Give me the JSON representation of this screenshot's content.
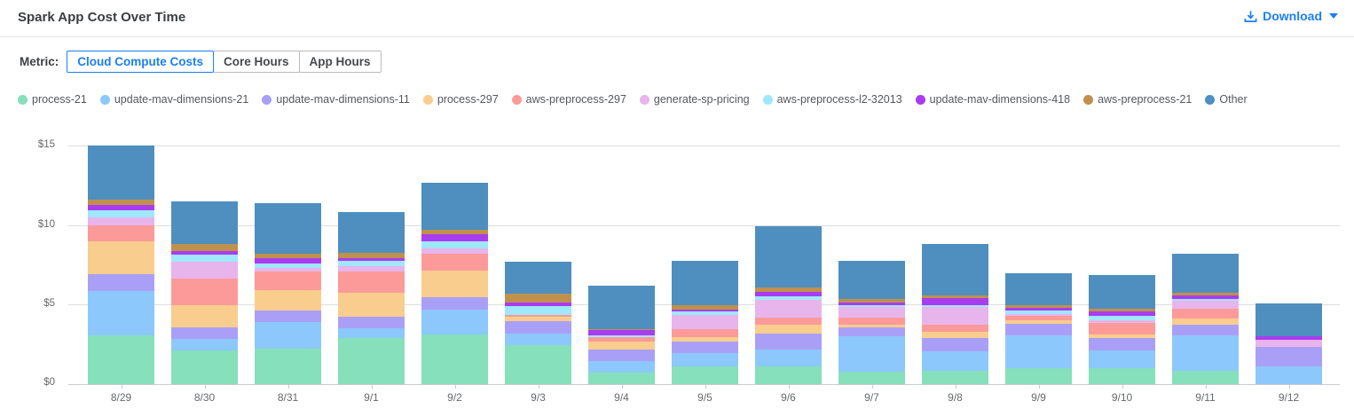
{
  "header": {
    "title": "Spark App Cost Over Time",
    "download_label": "Download"
  },
  "metric": {
    "label": "Metric:",
    "options": [
      {
        "label": "Cloud Compute Costs",
        "selected": true
      },
      {
        "label": "Core Hours",
        "selected": false
      },
      {
        "label": "App Hours",
        "selected": false
      }
    ]
  },
  "colors": {
    "accent_blue": "#1b7ff2",
    "axis_text": "#66696c",
    "legend_text": "#55585b",
    "gridline": "#dcdee0"
  },
  "chart_data": {
    "type": "bar",
    "stacked": true,
    "title": "Spark App Cost Over Time",
    "xlabel": "",
    "ylabel": "",
    "ylim": [
      0,
      15
    ],
    "ytick_labels": [
      "$0",
      "$5",
      "$10",
      "$15"
    ],
    "grid": true,
    "legend_position": "top",
    "x": [
      "8/29",
      "8/30",
      "8/31",
      "9/1",
      "9/2",
      "9/3",
      "9/4",
      "9/5",
      "9/6",
      "9/7",
      "9/8",
      "9/9",
      "9/10",
      "9/11",
      "9/12"
    ],
    "series": [
      {
        "name": "process-21",
        "color": "#85e0bb",
        "values": [
          3.1,
          2.15,
          2.25,
          2.9,
          3.15,
          2.45,
          0.75,
          1.1,
          1.1,
          0.8,
          0.85,
          1.0,
          1.0,
          0.85,
          0.0
        ]
      },
      {
        "name": "update-mav-dimensions-21",
        "color": "#8cc8fc",
        "values": [
          2.8,
          0.7,
          1.7,
          0.65,
          1.55,
          0.75,
          0.7,
          0.85,
          1.1,
          2.25,
          1.25,
          2.1,
          1.15,
          2.25,
          1.1
        ]
      },
      {
        "name": "update-mav-dimensions-11",
        "color": "#aa9ff7",
        "values": [
          1.05,
          0.75,
          0.7,
          0.7,
          0.8,
          0.8,
          0.75,
          0.75,
          1.0,
          0.55,
          0.8,
          0.7,
          0.75,
          0.65,
          1.25
        ]
      },
      {
        "name": "process-297",
        "color": "#f8cd8d",
        "values": [
          2.05,
          1.4,
          1.3,
          1.55,
          1.65,
          0.25,
          0.5,
          0.25,
          0.55,
          0.15,
          0.4,
          0.25,
          0.25,
          0.4,
          0.0
        ]
      },
      {
        "name": "aws-preprocess-297",
        "color": "#fc9a99",
        "values": [
          1.05,
          1.65,
          1.15,
          1.3,
          1.1,
          0.15,
          0.25,
          0.5,
          0.45,
          0.45,
          0.45,
          0.25,
          0.7,
          0.6,
          0.0
        ]
      },
      {
        "name": "generate-sp-pricing",
        "color": "#e8b4ec",
        "values": [
          0.5,
          1.1,
          0.25,
          0.35,
          0.3,
          0.0,
          0.0,
          0.95,
          1.15,
          0.65,
          1.1,
          0.15,
          0.2,
          0.5,
          0.45
        ]
      },
      {
        "name": "aws-preprocess-l2-32013",
        "color": "#9fe7fa",
        "values": [
          0.45,
          0.45,
          0.3,
          0.35,
          0.45,
          0.55,
          0.15,
          0.2,
          0.2,
          0.15,
          0.15,
          0.2,
          0.25,
          0.15,
          0.0
        ]
      },
      {
        "name": "update-mav-dimensions-418",
        "color": "#a93cf0",
        "values": [
          0.3,
          0.2,
          0.3,
          0.15,
          0.45,
          0.2,
          0.3,
          0.1,
          0.3,
          0.15,
          0.45,
          0.15,
          0.3,
          0.2,
          0.25
        ]
      },
      {
        "name": "aws-preprocess-21",
        "color": "#c0904d",
        "values": [
          0.35,
          0.45,
          0.3,
          0.35,
          0.3,
          0.55,
          0.1,
          0.3,
          0.25,
          0.25,
          0.15,
          0.2,
          0.15,
          0.2,
          0.0
        ]
      },
      {
        "name": "Other",
        "color": "#4e8fbf",
        "values": [
          3.45,
          2.7,
          3.2,
          2.55,
          2.95,
          2.05,
          2.7,
          2.8,
          3.85,
          2.4,
          3.25,
          2.0,
          2.15,
          2.45,
          2.05
        ]
      }
    ]
  }
}
